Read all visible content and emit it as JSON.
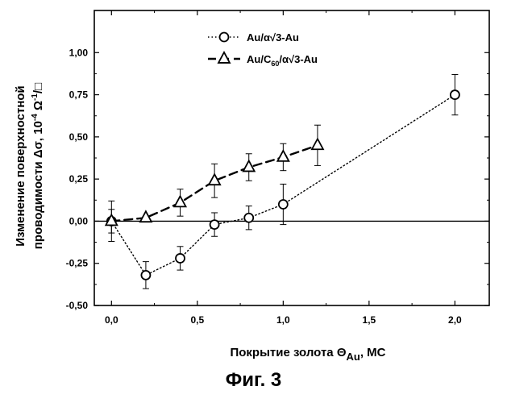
{
  "chart_data": {
    "type": "scatter",
    "title": "",
    "xlabel": {
      "main": "Покрытие золота Θ",
      "sub": "Au",
      "unit": ", МС"
    },
    "ylabel": {
      "line1": "Изменение поверхностной",
      "line2_main": "проводимости Δσ, 10",
      "line2_exp1": "-4",
      "line2_mid": " Ω",
      "line2_exp2": "-1",
      "line2_end": "/□"
    },
    "xlim": [
      -0.1,
      2.2
    ],
    "ylim": [
      -0.5,
      1.25
    ],
    "x_ticks": [
      0.0,
      0.5,
      1.0,
      1.5,
      2.0
    ],
    "x_tick_labels": [
      "0,0",
      "0,5",
      "1,0",
      "1,5",
      "2,0"
    ],
    "y_ticks": [
      -0.5,
      -0.25,
      0.0,
      0.25,
      0.5,
      0.75,
      1.0
    ],
    "y_tick_labels": [
      "-0,50",
      "-0,25",
      "0,00",
      "0,25",
      "0,50",
      "0,75",
      "1,00"
    ],
    "reference_line_y": 0.0,
    "grid": false,
    "legend_position": "top-center",
    "series": [
      {
        "name_parts": [
          "Au/α√3-Au"
        ],
        "marker": "circle",
        "line_style": "dotted",
        "color": "#000000",
        "points": [
          {
            "x": 0.0,
            "y": 0.0,
            "err": 0.12
          },
          {
            "x": 0.2,
            "y": -0.32,
            "err": 0.08
          },
          {
            "x": 0.4,
            "y": -0.22,
            "err": 0.07
          },
          {
            "x": 0.6,
            "y": -0.02,
            "err": 0.07
          },
          {
            "x": 0.8,
            "y": 0.02,
            "err": 0.07
          },
          {
            "x": 1.0,
            "y": 0.1,
            "err": 0.12
          },
          {
            "x": 2.0,
            "y": 0.75,
            "err": 0.12
          }
        ]
      },
      {
        "name_parts": [
          "Au/C",
          "60",
          "/α√3-Au"
        ],
        "marker": "triangle",
        "line_style": "dashed",
        "color": "#000000",
        "points": [
          {
            "x": 0.0,
            "y": 0.0,
            "err": 0.07
          },
          {
            "x": 0.2,
            "y": 0.02,
            "err": 0.0
          },
          {
            "x": 0.4,
            "y": 0.11,
            "err": 0.08
          },
          {
            "x": 0.6,
            "y": 0.24,
            "err": 0.1
          },
          {
            "x": 0.8,
            "y": 0.32,
            "err": 0.08
          },
          {
            "x": 1.0,
            "y": 0.38,
            "err": 0.08
          },
          {
            "x": 1.2,
            "y": 0.45,
            "err": 0.12
          }
        ]
      }
    ]
  },
  "caption": "Фиг. 3"
}
